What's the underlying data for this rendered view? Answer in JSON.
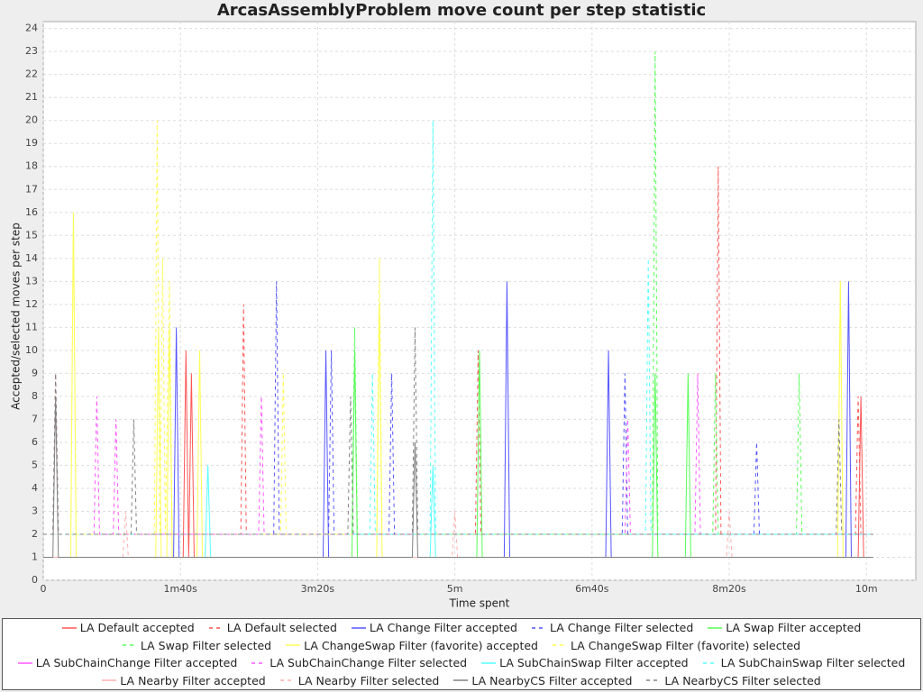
{
  "chart_data": {
    "type": "line",
    "title": "ArcasAssemblyProblem move count per step statistic",
    "x_label": "Time spent",
    "y_label": "Accepted/selected moves per step",
    "xlim": [
      0,
      636
    ],
    "ylim": [
      0,
      24.3
    ],
    "xticks": [
      {
        "value": 0,
        "label": "0"
      },
      {
        "value": 100,
        "label": "1m40s"
      },
      {
        "value": 200,
        "label": "3m20s"
      },
      {
        "value": 300,
        "label": "5m"
      },
      {
        "value": 400,
        "label": "6m40s"
      },
      {
        "value": 500,
        "label": "8m20s"
      },
      {
        "value": 600,
        "label": "10m"
      }
    ],
    "yticks": [
      0,
      1,
      2,
      3,
      4,
      5,
      6,
      7,
      8,
      9,
      10,
      11,
      12,
      13,
      14,
      15,
      16,
      17,
      18,
      19,
      20,
      21,
      22,
      23,
      24
    ],
    "grid": true,
    "series": [
      {
        "name": "LA Default accepted",
        "color": "#ff5555",
        "dash": false,
        "x": [
          0,
          102,
          104,
          106,
          108,
          110,
          594,
          596,
          598,
          605
        ],
        "values": [
          1,
          1,
          10,
          1,
          9,
          1,
          1,
          8,
          1,
          1
        ]
      },
      {
        "name": "LA Default selected",
        "color": "#ff5555",
        "dash": true,
        "x": [
          0,
          7,
          9,
          11,
          144,
          146,
          148,
          315,
          317,
          319,
          490,
          492,
          494,
          592,
          594,
          596,
          605
        ],
        "values": [
          2,
          2,
          9,
          2,
          2,
          12,
          2,
          2,
          10,
          2,
          2,
          18,
          2,
          2,
          8,
          2,
          2
        ]
      },
      {
        "name": "LA Change Filter accepted",
        "color": "#5555ff",
        "dash": false,
        "x": [
          0,
          95,
          97,
          99,
          204,
          206,
          208,
          336,
          338,
          340,
          410,
          412,
          414,
          585,
          587,
          589,
          605
        ],
        "values": [
          1,
          1,
          11,
          1,
          1,
          10,
          1,
          1,
          13,
          1,
          1,
          10,
          1,
          1,
          13,
          1,
          1
        ]
      },
      {
        "name": "LA Change Filter selected",
        "color": "#5555ff",
        "dash": true,
        "x": [
          0,
          168,
          170,
          172,
          208,
          210,
          212,
          252,
          254,
          256,
          422,
          424,
          426,
          518,
          520,
          522,
          605
        ],
        "values": [
          2,
          2,
          13,
          2,
          2,
          10,
          2,
          2,
          9,
          2,
          2,
          9,
          2,
          2,
          6,
          2,
          2
        ]
      },
      {
        "name": "LA Swap Filter accepted",
        "color": "#55ff55",
        "dash": false,
        "x": [
          0,
          225,
          227,
          229,
          316,
          318,
          320,
          444,
          446,
          448,
          468,
          470,
          472,
          605
        ],
        "values": [
          1,
          1,
          10,
          1,
          1,
          10,
          1,
          1,
          9,
          1,
          1,
          9,
          1,
          1
        ]
      },
      {
        "name": "LA Swap Filter selected",
        "color": "#55ff55",
        "dash": true,
        "x": [
          0,
          225,
          227,
          229,
          444,
          446,
          448,
          488,
          490,
          492,
          549,
          551,
          553,
          605
        ],
        "values": [
          2,
          2,
          11,
          2,
          2,
          23,
          2,
          2,
          9,
          2,
          2,
          9,
          2,
          2
        ]
      },
      {
        "name": "LA ChangeSwap Filter (favorite) accepted",
        "color": "#ffff55",
        "dash": false,
        "x": [
          0,
          20,
          22,
          24,
          82,
          84,
          86,
          90,
          92,
          94,
          112,
          114,
          116,
          243,
          245,
          247,
          579,
          581,
          583,
          605
        ],
        "values": [
          1,
          1,
          16,
          1,
          1,
          11,
          1,
          1,
          11,
          1,
          1,
          10,
          1,
          1,
          12,
          1,
          1,
          13,
          1,
          1
        ]
      },
      {
        "name": "LA ChangeSwap Filter (favorite) selected",
        "color": "#ffff55",
        "dash": true,
        "x": [
          0,
          20,
          22,
          24,
          81,
          83,
          85,
          87,
          89,
          92,
          94,
          173,
          175,
          177,
          243,
          245,
          247,
          579,
          581,
          583,
          605
        ],
        "values": [
          2,
          2,
          16,
          2,
          2,
          20,
          2,
          14,
          2,
          13,
          2,
          2,
          9,
          2,
          2,
          14,
          2,
          2,
          13,
          2,
          2
        ]
      },
      {
        "name": "LA SubChainChange Filter accepted",
        "color": "#ff55ff",
        "dash": false,
        "x": [
          0,
          605
        ],
        "values": [
          1,
          1
        ]
      },
      {
        "name": "LA SubChainChange Filter selected",
        "color": "#ff55ff",
        "dash": true,
        "x": [
          0,
          37,
          39,
          41,
          51,
          53,
          55,
          157,
          159,
          161,
          424,
          426,
          428,
          475,
          477,
          479,
          605
        ],
        "values": [
          2,
          2,
          8,
          2,
          2,
          7,
          2,
          2,
          8,
          2,
          2,
          7,
          2,
          2,
          9,
          2,
          2
        ]
      },
      {
        "name": "LA SubChainSwap Filter accepted",
        "color": "#55ffff",
        "dash": false,
        "x": [
          0,
          118,
          120,
          122,
          282,
          284,
          286,
          605
        ],
        "values": [
          1,
          1,
          5,
          1,
          1,
          5,
          1,
          1
        ]
      },
      {
        "name": "LA SubChainSwap Filter selected",
        "color": "#55ffff",
        "dash": true,
        "x": [
          0,
          238,
          240,
          242,
          282,
          284,
          286,
          439,
          441,
          443,
          605
        ],
        "values": [
          2,
          2,
          9,
          2,
          2,
          20,
          2,
          2,
          14,
          2,
          2
        ]
      },
      {
        "name": "LA Nearby Filter accepted",
        "color": "#ffafaf",
        "dash": false,
        "x": [
          0,
          605
        ],
        "values": [
          1,
          1
        ]
      },
      {
        "name": "LA Nearby Filter selected",
        "color": "#ffafaf",
        "dash": true,
        "x": [
          0,
          58,
          60,
          62,
          298,
          300,
          302,
          498,
          500,
          502,
          605
        ],
        "values": [
          1,
          1,
          3,
          1,
          1,
          3,
          1,
          1,
          3,
          1,
          1
        ]
      },
      {
        "name": "LA NearbyCS Filter accepted",
        "color": "#808080",
        "dash": false,
        "x": [
          0,
          7,
          9,
          11,
          269,
          271,
          273,
          605
        ],
        "values": [
          1,
          1,
          8,
          1,
          1,
          6,
          1,
          1
        ]
      },
      {
        "name": "LA NearbyCS Filter selected",
        "color": "#808080",
        "dash": true,
        "x": [
          0,
          7,
          9,
          11,
          64,
          66,
          68,
          222,
          224,
          226,
          269,
          271,
          273,
          578,
          580,
          582,
          605
        ],
        "values": [
          2,
          2,
          9,
          2,
          2,
          7,
          2,
          2,
          8,
          2,
          2,
          11,
          2,
          2,
          7,
          2,
          2
        ]
      }
    ]
  }
}
